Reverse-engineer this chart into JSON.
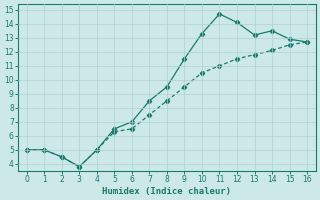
{
  "upper_x": [
    0,
    1,
    2,
    3,
    4,
    5,
    6,
    7,
    8,
    9,
    10,
    11,
    12,
    13,
    14,
    15,
    16
  ],
  "upper_y": [
    5.0,
    5.0,
    4.5,
    3.8,
    5.0,
    6.5,
    7.0,
    8.5,
    9.5,
    11.5,
    13.3,
    14.7,
    14.1,
    13.2,
    13.5,
    12.9,
    12.7
  ],
  "lower_x": [
    0,
    1,
    2,
    3,
    4,
    5,
    6,
    7,
    8,
    9,
    10,
    11,
    12,
    13,
    14,
    15,
    16
  ],
  "lower_y": [
    5.0,
    5.0,
    4.5,
    3.8,
    5.0,
    6.3,
    6.5,
    7.5,
    8.5,
    9.5,
    10.5,
    11.0,
    11.5,
    11.8,
    12.1,
    12.5,
    12.7
  ],
  "color": "#1a7a6e",
  "bg_color": "#cce8e8",
  "grid_color": "#b0d0d0",
  "xlabel": "Humidex (Indice chaleur)",
  "xlim_min": -0.5,
  "xlim_max": 16.5,
  "ylim_min": 3.5,
  "ylim_max": 15.4,
  "xticks": [
    0,
    1,
    2,
    3,
    4,
    5,
    6,
    7,
    8,
    9,
    10,
    11,
    12,
    13,
    14,
    15,
    16
  ],
  "yticks": [
    4,
    5,
    6,
    7,
    8,
    9,
    10,
    11,
    12,
    13,
    14,
    15
  ]
}
